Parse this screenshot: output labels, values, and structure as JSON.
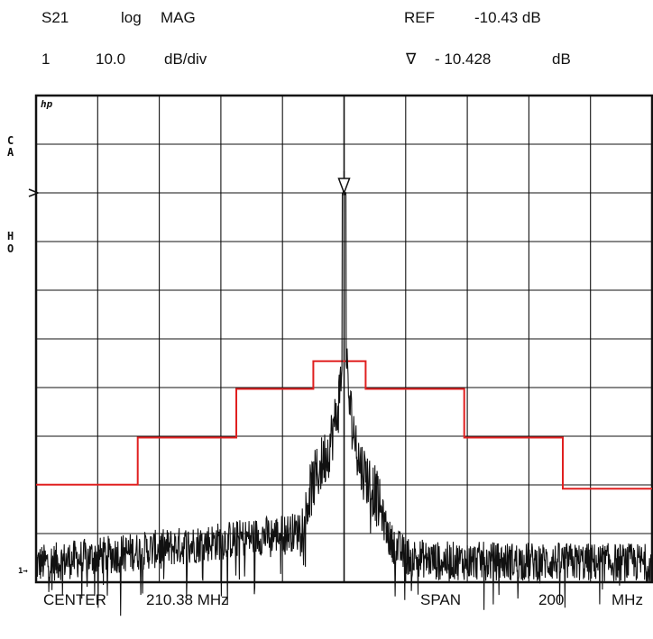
{
  "header": {
    "row1": {
      "param": "S21",
      "format": "log",
      "mode": "MAG",
      "ref_label": "REF",
      "ref_value": "-10.43 dB"
    },
    "row2": {
      "channel": "1",
      "scale": "10.0",
      "scale_unit": "dB/div",
      "marker_symbol": "∇",
      "marker_value": "- 10.428",
      "marker_unit": "dB"
    }
  },
  "footer": {
    "center_label": "CENTER",
    "center_value": "210.38 MHz",
    "span_label": "SPAN",
    "span_value": "200",
    "span_unit": "MHz"
  },
  "side_labels": {
    "c": "C",
    "a": "A",
    "h": "H",
    "o": "O",
    "logo": "hp",
    "ref_marker": "1→"
  },
  "chart_data": {
    "type": "line",
    "x_center_mhz": 210.38,
    "x_span_mhz": 200,
    "x_range_mhz": [
      110.38,
      310.38
    ],
    "y_ref_db": -10.43,
    "y_scale_db_per_div": 10,
    "y_range_db": [
      -90.43,
      9.57
    ],
    "grid": true,
    "series": [
      {
        "color": "#111111",
        "peak": {
          "x_mhz": 210.38,
          "y_db": -10.428
        },
        "shoulder_x_mhz": [
          100.38,
          195.38,
          200.38,
          205.38,
          208.38,
          209.88,
          210.38,
          210.88,
          212.38,
          215.38,
          220.38,
          225.38,
          230.38,
          240.38,
          320.38
        ],
        "shoulder_y_db": [
          -87.5,
          -80,
          -70,
          -63,
          -55,
          -45,
          -10.4,
          -45,
          -55,
          -66,
          -72,
          -82,
          -85,
          -86,
          -86.5
        ]
      },
      {
        "color": "#e02020",
        "mask_x_mhz": [
          110.38,
          143.38,
          143.38,
          175.38,
          175.38,
          200.38,
          200.38,
          217.38,
          217.38,
          249.38,
          249.38,
          281.38,
          281.38,
          310.38
        ],
        "mask_y_db": [
          -70.4,
          -70.4,
          -60.7,
          -60.7,
          -50.7,
          -50.7,
          -45,
          -45,
          -50.7,
          -50.7,
          -60.7,
          -60.7,
          -71.2,
          -71.2
        ]
      }
    ]
  }
}
